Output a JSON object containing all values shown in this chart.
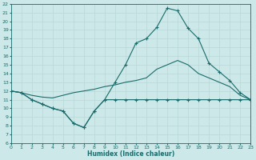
{
  "xlabel": "Humidex (Indice chaleur)",
  "bg_color": "#cce8e8",
  "grid_color": "#aacccc",
  "line_color": "#1a6b6b",
  "xlim": [
    0,
    23
  ],
  "ylim": [
    6,
    22
  ],
  "xticks": [
    0,
    1,
    2,
    3,
    4,
    5,
    6,
    7,
    8,
    9,
    10,
    11,
    12,
    13,
    14,
    15,
    16,
    17,
    18,
    19,
    20,
    21,
    22,
    23
  ],
  "yticks": [
    6,
    7,
    8,
    9,
    10,
    11,
    12,
    13,
    14,
    15,
    16,
    17,
    18,
    19,
    20,
    21,
    22
  ],
  "line1_x": [
    0,
    1,
    2,
    3,
    4,
    5,
    6,
    7,
    8,
    9,
    10,
    11,
    12,
    13,
    14,
    15,
    16,
    17,
    18,
    19,
    20,
    21,
    22,
    23
  ],
  "line1_y": [
    12.0,
    11.8,
    11.0,
    10.5,
    10.0,
    9.7,
    8.3,
    7.8,
    9.7,
    11.0,
    13.0,
    15.0,
    17.5,
    18.0,
    19.3,
    21.5,
    21.2,
    19.2,
    18.0,
    15.2,
    14.2,
    13.2,
    11.8,
    11.0
  ],
  "line2_x": [
    0,
    1,
    2,
    3,
    4,
    5,
    6,
    7,
    8,
    9,
    10,
    11,
    12,
    13,
    14,
    15,
    16,
    17,
    18,
    19,
    20,
    21,
    22,
    23
  ],
  "line2_y": [
    12.0,
    11.8,
    11.5,
    11.3,
    11.2,
    11.5,
    11.8,
    12.0,
    12.2,
    12.5,
    12.7,
    13.0,
    13.2,
    13.5,
    14.5,
    15.0,
    15.5,
    15.0,
    14.0,
    13.5,
    13.0,
    12.5,
    11.5,
    11.0
  ],
  "line3_x": [
    0,
    1,
    2,
    3,
    4,
    5,
    6,
    7,
    8,
    9,
    10,
    11,
    12,
    13,
    14,
    15,
    16,
    17,
    18,
    19,
    20,
    21,
    22,
    23
  ],
  "line3_y": [
    12.0,
    11.8,
    11.0,
    10.5,
    10.0,
    9.7,
    8.3,
    7.8,
    9.7,
    11.0,
    11.0,
    11.0,
    11.0,
    11.0,
    11.0,
    11.0,
    11.0,
    11.0,
    11.0,
    11.0,
    11.0,
    11.0,
    11.0,
    11.0
  ],
  "figsize": [
    3.2,
    2.0
  ],
  "dpi": 100
}
